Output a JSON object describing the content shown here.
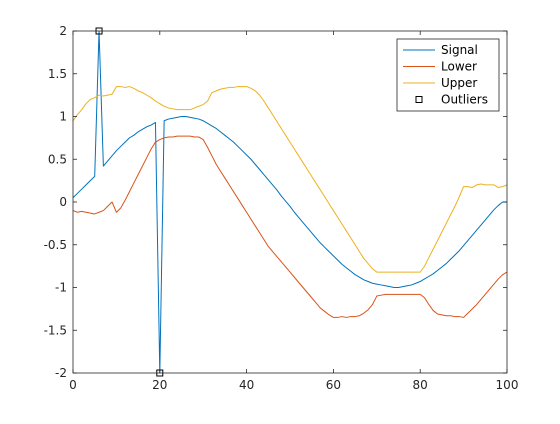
{
  "chart_data": {
    "type": "line",
    "title": "",
    "xlabel": "",
    "ylabel": "",
    "xlim": [
      0,
      100
    ],
    "ylim": [
      -2,
      2
    ],
    "xticks": [
      0,
      20,
      40,
      60,
      80,
      100
    ],
    "yticks": [
      -2,
      -1.5,
      -1,
      -0.5,
      0,
      0.5,
      1,
      1.5,
      2
    ],
    "xtick_labels": [
      "0",
      "20",
      "40",
      "60",
      "80",
      "100"
    ],
    "ytick_labels": [
      "-2",
      "-1.5",
      "-1",
      "-0.5",
      "0",
      "0.5",
      "1",
      "1.5",
      "2"
    ],
    "grid": false,
    "legend_position": "top-right",
    "series": [
      {
        "name": "Signal",
        "color": "#0072BD",
        "marker": "none",
        "x": [
          0,
          1,
          2,
          3,
          4,
          5,
          6,
          7,
          8,
          9,
          10,
          11,
          12,
          13,
          14,
          15,
          16,
          17,
          18,
          19,
          20,
          21,
          22,
          23,
          24,
          25,
          26,
          27,
          28,
          29,
          30,
          31,
          32,
          33,
          34,
          35,
          36,
          37,
          38,
          39,
          40,
          41,
          42,
          43,
          44,
          45,
          46,
          47,
          48,
          49,
          50,
          51,
          52,
          53,
          54,
          55,
          56,
          57,
          58,
          59,
          60,
          61,
          62,
          63,
          64,
          65,
          66,
          67,
          68,
          69,
          70,
          71,
          72,
          73,
          74,
          75,
          76,
          77,
          78,
          79,
          80,
          81,
          82,
          83,
          84,
          85,
          86,
          87,
          88,
          89,
          90,
          91,
          92,
          93,
          94,
          95,
          96,
          97,
          98,
          99,
          100
        ],
        "y": [
          0.05,
          0.1,
          0.15,
          0.2,
          0.25,
          0.3,
          2.0,
          0.42,
          0.48,
          0.54,
          0.6,
          0.65,
          0.7,
          0.75,
          0.78,
          0.82,
          0.85,
          0.88,
          0.9,
          0.93,
          -2.0,
          0.95,
          0.97,
          0.98,
          0.99,
          1.0,
          1.0,
          0.99,
          0.98,
          0.97,
          0.95,
          0.92,
          0.89,
          0.86,
          0.82,
          0.78,
          0.74,
          0.7,
          0.65,
          0.6,
          0.55,
          0.5,
          0.44,
          0.38,
          0.32,
          0.26,
          0.2,
          0.14,
          0.07,
          0.01,
          -0.05,
          -0.12,
          -0.18,
          -0.24,
          -0.3,
          -0.36,
          -0.42,
          -0.48,
          -0.53,
          -0.58,
          -0.63,
          -0.68,
          -0.73,
          -0.77,
          -0.81,
          -0.85,
          -0.88,
          -0.91,
          -0.93,
          -0.95,
          -0.96,
          -0.97,
          -0.98,
          -0.99,
          -1.0,
          -1.0,
          -0.99,
          -0.98,
          -0.97,
          -0.95,
          -0.93,
          -0.9,
          -0.87,
          -0.84,
          -0.8,
          -0.76,
          -0.72,
          -0.67,
          -0.62,
          -0.57,
          -0.51,
          -0.45,
          -0.39,
          -0.33,
          -0.27,
          -0.21,
          -0.15,
          -0.09,
          -0.04,
          0.0,
          0.0
        ]
      },
      {
        "name": "Lower",
        "color": "#D95319",
        "marker": "none",
        "x": [
          0,
          1,
          2,
          3,
          4,
          5,
          6,
          7,
          8,
          9,
          10,
          11,
          12,
          13,
          14,
          15,
          16,
          17,
          18,
          19,
          20,
          21,
          22,
          23,
          24,
          25,
          26,
          27,
          28,
          29,
          30,
          31,
          32,
          33,
          34,
          35,
          36,
          37,
          38,
          39,
          40,
          41,
          42,
          43,
          44,
          45,
          46,
          47,
          48,
          49,
          50,
          51,
          52,
          53,
          54,
          55,
          56,
          57,
          58,
          59,
          60,
          61,
          62,
          63,
          64,
          65,
          66,
          67,
          68,
          69,
          70,
          71,
          72,
          73,
          74,
          75,
          76,
          77,
          78,
          79,
          80,
          81,
          82,
          83,
          84,
          85,
          86,
          87,
          88,
          89,
          90,
          91,
          92,
          93,
          94,
          95,
          96,
          97,
          98,
          99,
          100
        ],
        "y": [
          -0.1,
          -0.12,
          -0.11,
          -0.12,
          -0.13,
          -0.14,
          -0.12,
          -0.1,
          -0.05,
          0.0,
          -0.12,
          -0.07,
          0.02,
          0.12,
          0.22,
          0.32,
          0.42,
          0.52,
          0.62,
          0.7,
          0.73,
          0.75,
          0.76,
          0.76,
          0.77,
          0.77,
          0.77,
          0.77,
          0.76,
          0.76,
          0.73,
          0.64,
          0.54,
          0.44,
          0.36,
          0.28,
          0.2,
          0.12,
          0.04,
          -0.04,
          -0.12,
          -0.2,
          -0.28,
          -0.36,
          -0.44,
          -0.52,
          -0.58,
          -0.64,
          -0.7,
          -0.76,
          -0.82,
          -0.88,
          -0.94,
          -1.0,
          -1.06,
          -1.12,
          -1.18,
          -1.24,
          -1.28,
          -1.32,
          -1.35,
          -1.35,
          -1.34,
          -1.35,
          -1.34,
          -1.34,
          -1.33,
          -1.3,
          -1.26,
          -1.2,
          -1.1,
          -1.09,
          -1.08,
          -1.08,
          -1.08,
          -1.08,
          -1.08,
          -1.08,
          -1.08,
          -1.08,
          -1.08,
          -1.12,
          -1.2,
          -1.27,
          -1.31,
          -1.32,
          -1.33,
          -1.33,
          -1.34,
          -1.34,
          -1.35,
          -1.3,
          -1.25,
          -1.2,
          -1.14,
          -1.08,
          -1.02,
          -0.96,
          -0.9,
          -0.85,
          -0.82
        ]
      },
      {
        "name": "Upper",
        "color": "#EDB120",
        "marker": "none",
        "x": [
          0,
          1,
          2,
          3,
          4,
          5,
          6,
          7,
          8,
          9,
          10,
          11,
          12,
          13,
          14,
          15,
          16,
          17,
          18,
          19,
          20,
          21,
          22,
          23,
          24,
          25,
          26,
          27,
          28,
          29,
          30,
          31,
          32,
          33,
          34,
          35,
          36,
          37,
          38,
          39,
          40,
          41,
          42,
          43,
          44,
          45,
          46,
          47,
          48,
          49,
          50,
          51,
          52,
          53,
          54,
          55,
          56,
          57,
          58,
          59,
          60,
          61,
          62,
          63,
          64,
          65,
          66,
          67,
          68,
          69,
          70,
          71,
          72,
          73,
          74,
          75,
          76,
          77,
          78,
          79,
          80,
          81,
          82,
          83,
          84,
          85,
          86,
          87,
          88,
          89,
          90,
          91,
          92,
          93,
          94,
          95,
          96,
          97,
          98,
          99,
          100
        ],
        "y": [
          0.95,
          1.02,
          1.08,
          1.15,
          1.2,
          1.22,
          1.25,
          1.24,
          1.25,
          1.26,
          1.35,
          1.35,
          1.34,
          1.35,
          1.33,
          1.3,
          1.28,
          1.25,
          1.22,
          1.18,
          1.15,
          1.12,
          1.1,
          1.09,
          1.08,
          1.08,
          1.08,
          1.08,
          1.1,
          1.12,
          1.14,
          1.18,
          1.28,
          1.3,
          1.32,
          1.33,
          1.34,
          1.34,
          1.35,
          1.35,
          1.35,
          1.33,
          1.3,
          1.25,
          1.18,
          1.1,
          1.02,
          0.94,
          0.86,
          0.78,
          0.7,
          0.62,
          0.54,
          0.46,
          0.38,
          0.3,
          0.22,
          0.14,
          0.06,
          -0.02,
          -0.1,
          -0.18,
          -0.26,
          -0.34,
          -0.42,
          -0.5,
          -0.58,
          -0.66,
          -0.72,
          -0.78,
          -0.82,
          -0.82,
          -0.82,
          -0.82,
          -0.82,
          -0.82,
          -0.82,
          -0.82,
          -0.82,
          -0.82,
          -0.82,
          -0.75,
          -0.65,
          -0.55,
          -0.45,
          -0.35,
          -0.25,
          -0.15,
          -0.05,
          0.06,
          0.18,
          0.18,
          0.17,
          0.2,
          0.21,
          0.2,
          0.2,
          0.2,
          0.17,
          0.18,
          0.2
        ]
      },
      {
        "name": "Outliers",
        "color": "#000000",
        "marker": "square",
        "line": "none",
        "x": [
          6,
          20
        ],
        "y": [
          2,
          -2
        ]
      }
    ]
  }
}
